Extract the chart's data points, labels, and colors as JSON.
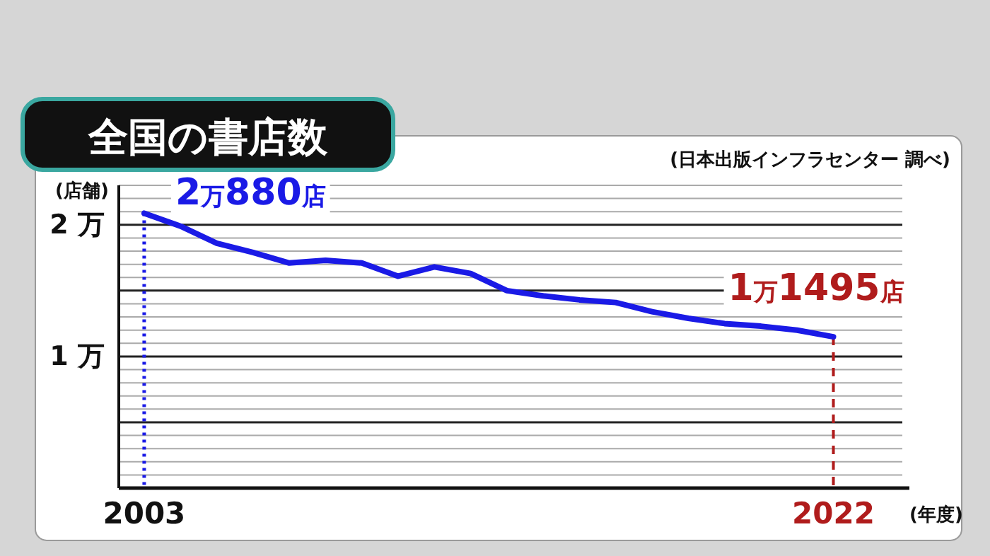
{
  "chart_data": {
    "type": "line",
    "title": "全国の書店数",
    "ylabel": "(店舗)",
    "xlabel": "(年度)",
    "x": [
      2003,
      2004,
      2005,
      2006,
      2007,
      2008,
      2009,
      2010,
      2011,
      2012,
      2013,
      2014,
      2015,
      2016,
      2017,
      2018,
      2019,
      2020,
      2021,
      2022
    ],
    "series": [
      {
        "color": "#1a1ae6",
        "values": [
          2.088,
          1.99,
          1.86,
          1.79,
          1.71,
          1.73,
          1.71,
          1.61,
          1.68,
          1.63,
          1.5,
          1.46,
          1.43,
          1.41,
          1.34,
          1.29,
          1.25,
          1.23,
          1.2,
          1.1495
        ]
      }
    ],
    "xlim": [
      2002.3,
      2023.9
    ],
    "xticks": [
      {
        "value": 2003,
        "label": "2003"
      },
      {
        "value": 2022,
        "label": "2022"
      }
    ],
    "ylim": [
      0,
      2.3
    ],
    "yticks": [
      {
        "value": 0,
        "label": null
      },
      {
        "value": 0.1,
        "label": null
      },
      {
        "value": 0.2,
        "label": null
      },
      {
        "value": 0.3,
        "label": null
      },
      {
        "value": 0.4,
        "label": null
      },
      {
        "value": 0.5,
        "label": null
      },
      {
        "value": 0.6,
        "label": null
      },
      {
        "value": 0.7,
        "label": null
      },
      {
        "value": 0.8,
        "label": null
      },
      {
        "value": 0.9,
        "label": null
      },
      {
        "value": 1,
        "label": "1 万"
      },
      {
        "value": 1.1,
        "label": null
      },
      {
        "value": 1.2,
        "label": null
      },
      {
        "value": 1.3,
        "label": null
      },
      {
        "value": 1.4,
        "label": null
      },
      {
        "value": 1.5,
        "label": null
      },
      {
        "value": 1.6,
        "label": null
      },
      {
        "value": 1.7,
        "label": null
      },
      {
        "value": 1.8,
        "label": null
      },
      {
        "value": 1.9,
        "label": null
      },
      {
        "value": 2,
        "label": "2 万"
      },
      {
        "value": 2.1,
        "label": null
      },
      {
        "value": 2.2,
        "label": null
      },
      {
        "value": 2.3,
        "label": null
      }
    ],
    "grid": "y",
    "line_style": "solid",
    "ref_lines": [
      {
        "axis": "x",
        "value": 2003,
        "label": null,
        "color": "#1a1ae6",
        "line_style": "dotted"
      },
      {
        "axis": "x",
        "value": 2022,
        "label": null,
        "color": "#b01c1c",
        "line_style": "dashed"
      }
    ],
    "annotations": [
      {
        "text": "2万880店",
        "x": 2003,
        "y": 2.088
      },
      {
        "text": "1万1495店",
        "x": 2022,
        "y": 1.1495
      },
      "(日本出版インフラセンター 調べ)"
    ]
  }
}
